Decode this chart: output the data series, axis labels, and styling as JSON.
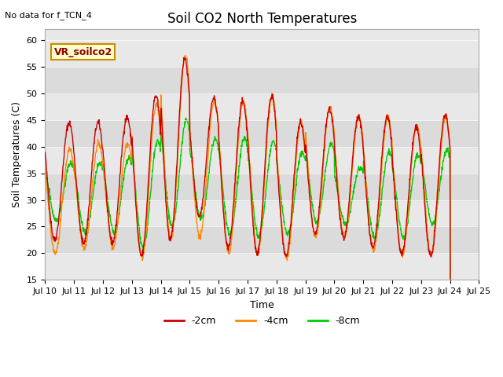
{
  "title": "Soil CO2 North Temperatures",
  "xlabel": "Time",
  "ylabel": "Soil Temperatures (C)",
  "top_left_text": "No data for f_TCN_4",
  "legend_box_text": "VR_soilco2",
  "ylim": [
    15,
    62
  ],
  "yticks": [
    15,
    20,
    25,
    30,
    35,
    40,
    45,
    50,
    55,
    60
  ],
  "x_tick_labels": [
    "Jul 10",
    "Jul 11",
    "Jul 12",
    "Jul 13",
    "Jul 14",
    "Jul 15",
    "Jul 16",
    "Jul 17",
    "Jul 18",
    "Jul 19",
    "Jul 20",
    "Jul 21",
    "Jul 22",
    "Jul 23",
    "Jul 24",
    "Jul 25"
  ],
  "line_colors": {
    "2cm": "#cc0000",
    "4cm": "#ff8800",
    "8cm": "#00cc00"
  },
  "legend_labels": [
    "-2cm",
    "-4cm",
    "-8cm"
  ],
  "background_color": "#ffffff",
  "plot_bg_color": "#e8e8e8",
  "legend_box_bg": "#ffffcc",
  "legend_box_border": "#cc8800",
  "n_points": 1440,
  "days": 15,
  "peaks_2cm": [
    44.5,
    44.5,
    45.5,
    49.5,
    56.5,
    49.0,
    48.5,
    49.5,
    44.5,
    47.0,
    45.5,
    45.5,
    43.5,
    46.0
  ],
  "troughs_2cm": [
    22.5,
    22.0,
    22.0,
    19.5,
    22.5,
    27.0,
    21.0,
    20.0,
    19.5,
    23.5,
    23.0,
    21.0,
    20.0,
    19.5
  ],
  "peaks_4cm": [
    39.5,
    40.5,
    40.5,
    48.0,
    57.0,
    48.5,
    48.5,
    49.5,
    44.5,
    47.5,
    45.5,
    45.5,
    44.0,
    45.5
  ],
  "troughs_4cm": [
    20.0,
    21.0,
    21.0,
    19.0,
    22.5,
    23.0,
    20.0,
    20.0,
    19.0,
    23.0,
    23.0,
    20.5,
    19.5,
    19.5
  ],
  "peaks_8cm": [
    37.0,
    37.0,
    38.0,
    41.0,
    45.0,
    41.5,
    41.5,
    41.0,
    39.0,
    40.5,
    36.0,
    39.0,
    38.5,
    39.5
  ],
  "troughs_8cm": [
    26.0,
    24.0,
    24.0,
    21.0,
    25.0,
    26.5,
    23.5,
    23.0,
    23.5,
    26.0,
    25.5,
    23.0,
    23.0,
    25.5
  ]
}
